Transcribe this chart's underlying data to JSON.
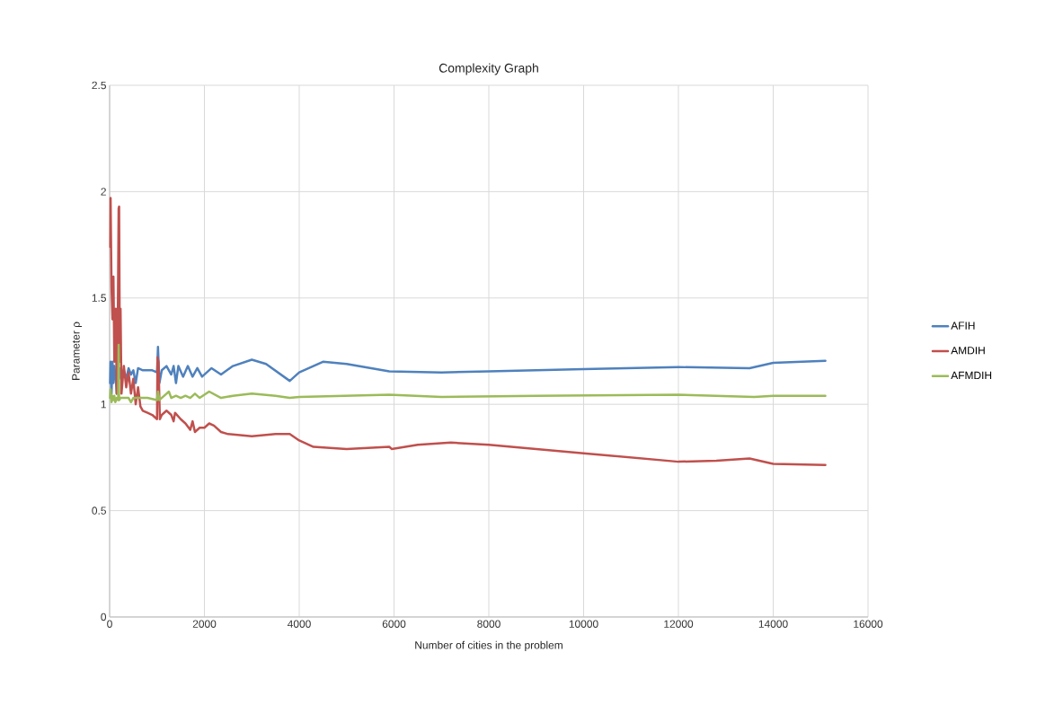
{
  "chart_data": {
    "type": "line",
    "title": "Complexity Graph",
    "xlabel": "Number of cities in the problem",
    "ylabel": "Parameter ρ",
    "xlim": [
      0,
      16000
    ],
    "xticks": [
      0,
      2000,
      4000,
      6000,
      8000,
      10000,
      12000,
      14000,
      16000
    ],
    "ylim": [
      0,
      2.5
    ],
    "yticks": [
      0,
      0.5,
      1,
      1.5,
      2,
      2.5
    ],
    "grid": true,
    "legend": "right",
    "marker": "none",
    "line_style": "solid",
    "series": [
      {
        "name": "AFIH",
        "color": "#4f81bd",
        "x": [
          10,
          20,
          40,
          60,
          80,
          100,
          130,
          150,
          180,
          200,
          230,
          250,
          300,
          350,
          400,
          450,
          500,
          550,
          600,
          700,
          800,
          900,
          1000,
          1020,
          1050,
          1100,
          1200,
          1300,
          1350,
          1400,
          1450,
          1550,
          1650,
          1750,
          1850,
          1950,
          2150,
          2350,
          2600,
          3000,
          3300,
          3800,
          4000,
          4500,
          5000,
          5900,
          7000,
          8000,
          10000,
          12000,
          13500,
          14000,
          15100
        ],
        "values": [
          1.1,
          1.2,
          1.05,
          1.2,
          1.1,
          1.18,
          1.12,
          1.05,
          1.15,
          1.12,
          1.17,
          1.13,
          1.16,
          1.12,
          1.17,
          1.14,
          1.16,
          1.1,
          1.17,
          1.16,
          1.16,
          1.16,
          1.15,
          1.27,
          1.1,
          1.16,
          1.18,
          1.14,
          1.18,
          1.1,
          1.18,
          1.13,
          1.18,
          1.13,
          1.17,
          1.13,
          1.17,
          1.14,
          1.18,
          1.21,
          1.19,
          1.11,
          1.15,
          1.2,
          1.19,
          1.155,
          1.15,
          1.155,
          1.165,
          1.175,
          1.17,
          1.195,
          1.205
        ]
      },
      {
        "name": "AMDIH",
        "color": "#c0504d",
        "x": [
          15,
          20,
          40,
          60,
          80,
          100,
          130,
          150,
          170,
          190,
          200,
          215,
          230,
          250,
          300,
          350,
          400,
          450,
          500,
          550,
          600,
          650,
          700,
          800,
          900,
          1000,
          1010,
          1030,
          1060,
          1100,
          1200,
          1300,
          1350,
          1380,
          1500,
          1600,
          1700,
          1750,
          1800,
          1900,
          2000,
          2100,
          2200,
          2350,
          2500,
          3000,
          3500,
          3800,
          4000,
          4300,
          5000,
          5900,
          5950,
          6500,
          7200,
          8000,
          9000,
          10000,
          11000,
          12000,
          12800,
          13500,
          14000,
          15100
        ],
        "values": [
          1.74,
          1.97,
          1.55,
          1.4,
          1.6,
          1.2,
          1.45,
          1.05,
          1.3,
          1.92,
          1.93,
          1.2,
          1.45,
          1.05,
          1.18,
          1.08,
          1.15,
          1.05,
          1.12,
          1.0,
          1.08,
          0.99,
          0.97,
          0.96,
          0.95,
          0.93,
          1.22,
          1.2,
          0.93,
          0.95,
          0.97,
          0.95,
          0.92,
          0.96,
          0.93,
          0.91,
          0.88,
          0.92,
          0.87,
          0.89,
          0.89,
          0.91,
          0.9,
          0.87,
          0.86,
          0.85,
          0.86,
          0.86,
          0.83,
          0.8,
          0.79,
          0.8,
          0.79,
          0.81,
          0.82,
          0.81,
          0.79,
          0.77,
          0.75,
          0.73,
          0.735,
          0.745,
          0.72,
          0.715
        ]
      },
      {
        "name": "AFMDIH",
        "color": "#9bbb59",
        "x": [
          10,
          20,
          40,
          60,
          80,
          100,
          120,
          150,
          180,
          190,
          200,
          230,
          300,
          400,
          450,
          500,
          600,
          700,
          800,
          1000,
          1020,
          1050,
          1100,
          1200,
          1250,
          1300,
          1400,
          1500,
          1600,
          1700,
          1800,
          1900,
          2100,
          2350,
          2600,
          3000,
          3500,
          3800,
          4000,
          5900,
          7000,
          9000,
          12000,
          13600,
          14000,
          15100
        ],
        "values": [
          1.03,
          1.07,
          1.01,
          1.04,
          1.02,
          1.04,
          1.01,
          1.03,
          1.02,
          1.28,
          1.02,
          1.03,
          1.03,
          1.03,
          1.01,
          1.03,
          1.03,
          1.03,
          1.03,
          1.02,
          1.06,
          1.02,
          1.03,
          1.05,
          1.06,
          1.03,
          1.04,
          1.03,
          1.04,
          1.03,
          1.05,
          1.03,
          1.06,
          1.03,
          1.04,
          1.05,
          1.04,
          1.03,
          1.035,
          1.045,
          1.035,
          1.04,
          1.045,
          1.035,
          1.04,
          1.04
        ]
      }
    ]
  }
}
